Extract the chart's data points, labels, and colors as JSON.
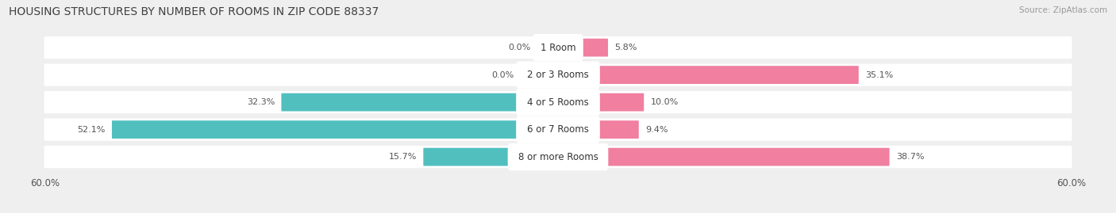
{
  "title": "HOUSING STRUCTURES BY NUMBER OF ROOMS IN ZIP CODE 88337",
  "source": "Source: ZipAtlas.com",
  "categories": [
    "1 Room",
    "2 or 3 Rooms",
    "4 or 5 Rooms",
    "6 or 7 Rooms",
    "8 or more Rooms"
  ],
  "owner_values": [
    0.0,
    0.0,
    32.3,
    52.1,
    15.7
  ],
  "renter_values": [
    5.8,
    35.1,
    10.0,
    9.4,
    38.7
  ],
  "owner_color": "#52bfbf",
  "renter_color": "#f07fa0",
  "axis_limit": 60.0,
  "background_color": "#efefef",
  "row_bg_color": "#ffffff",
  "label_color": "#555555",
  "title_color": "#404040"
}
